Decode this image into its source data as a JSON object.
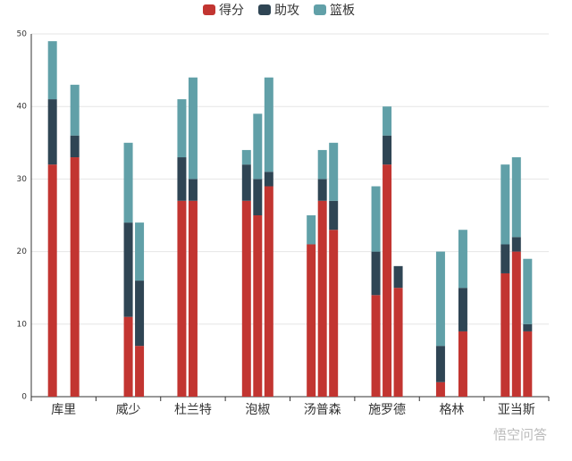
{
  "chart_data": {
    "type": "bar",
    "stacked": true,
    "categories": [
      "库里",
      "威少",
      "杜兰特",
      "泡椒",
      "汤普森",
      "施罗德",
      "格林",
      "亚当斯"
    ],
    "series": [
      {
        "name": "得分",
        "color": "#c23531",
        "values": [
          [
            32,
            null,
            33
          ],
          [
            null,
            11,
            7
          ],
          [
            27,
            27,
            null
          ],
          [
            27,
            25,
            29
          ],
          [
            21,
            27,
            23
          ],
          [
            14,
            32,
            15
          ],
          [
            2,
            null,
            9
          ],
          [
            17,
            20,
            9
          ]
        ]
      },
      {
        "name": "助攻",
        "color": "#2f4554",
        "values": [
          [
            9,
            null,
            3
          ],
          [
            null,
            13,
            9
          ],
          [
            6,
            3,
            null
          ],
          [
            5,
            5,
            2
          ],
          [
            0,
            3,
            4
          ],
          [
            6,
            4,
            3
          ],
          [
            5,
            null,
            6
          ],
          [
            4,
            2,
            1
          ]
        ]
      },
      {
        "name": "篮板",
        "color": "#61a0a8",
        "values": [
          [
            8,
            null,
            7
          ],
          [
            null,
            11,
            8
          ],
          [
            8,
            14,
            null
          ],
          [
            2,
            9,
            13
          ],
          [
            4,
            4,
            8
          ],
          [
            9,
            4,
            0
          ],
          [
            13,
            null,
            8
          ],
          [
            11,
            11,
            9
          ]
        ]
      }
    ],
    "ylim": [
      0,
      50
    ],
    "yticks": [
      0,
      10,
      20,
      30,
      40,
      50
    ],
    "grid": true,
    "legend": "top",
    "watermark": "悟空问答"
  }
}
